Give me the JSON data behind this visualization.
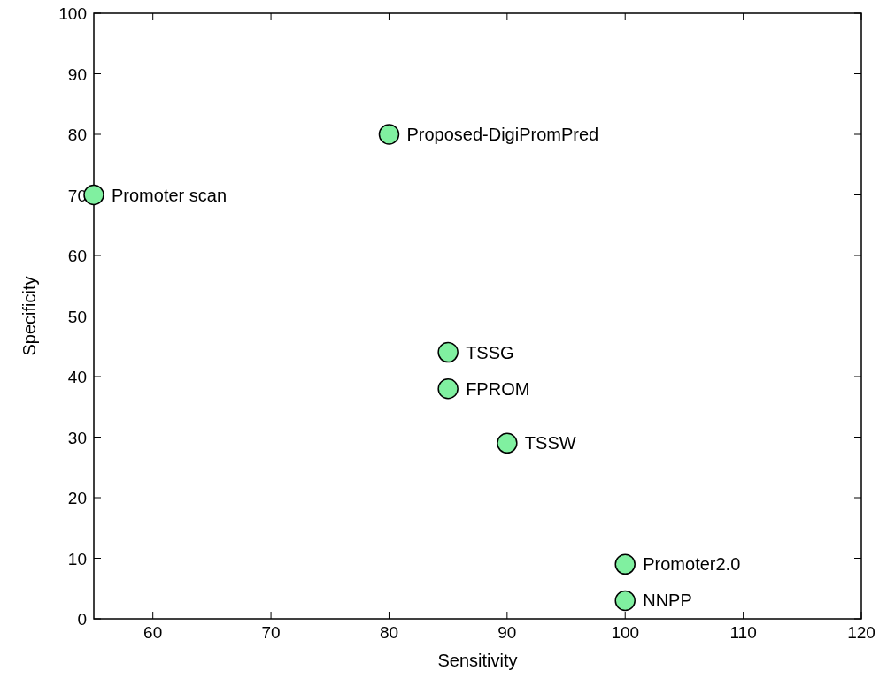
{
  "chart_data": {
    "type": "scatter",
    "xlabel": "Sensitivity",
    "ylabel": "Specificity",
    "x": [
      55,
      80,
      85,
      85,
      90,
      100,
      100
    ],
    "series": [
      {
        "color": "#80f0a0",
        "values": [
          70,
          80,
          44,
          38,
          29,
          9,
          3
        ]
      }
    ],
    "xlim": [
      55,
      120
    ],
    "xticks": [
      60,
      70,
      80,
      90,
      100,
      110,
      120
    ],
    "ylim": [
      0,
      100
    ],
    "yticks": [
      0,
      10,
      20,
      30,
      40,
      50,
      60,
      70,
      80,
      90,
      100
    ],
    "marker": "circle",
    "annotations": [
      {
        "text": "Promoter scan",
        "x": 55,
        "y": 70
      },
      {
        "text": "Proposed-DigiPromPred",
        "x": 80,
        "y": 80
      },
      {
        "text": "TSSG",
        "x": 85,
        "y": 44
      },
      {
        "text": "FPROM",
        "x": 85,
        "y": 38
      },
      {
        "text": "TSSW",
        "x": 90,
        "y": 29
      },
      {
        "text": "Promoter2.0",
        "x": 100,
        "y": 9
      },
      {
        "text": "NNPP",
        "x": 100,
        "y": 3
      }
    ]
  }
}
